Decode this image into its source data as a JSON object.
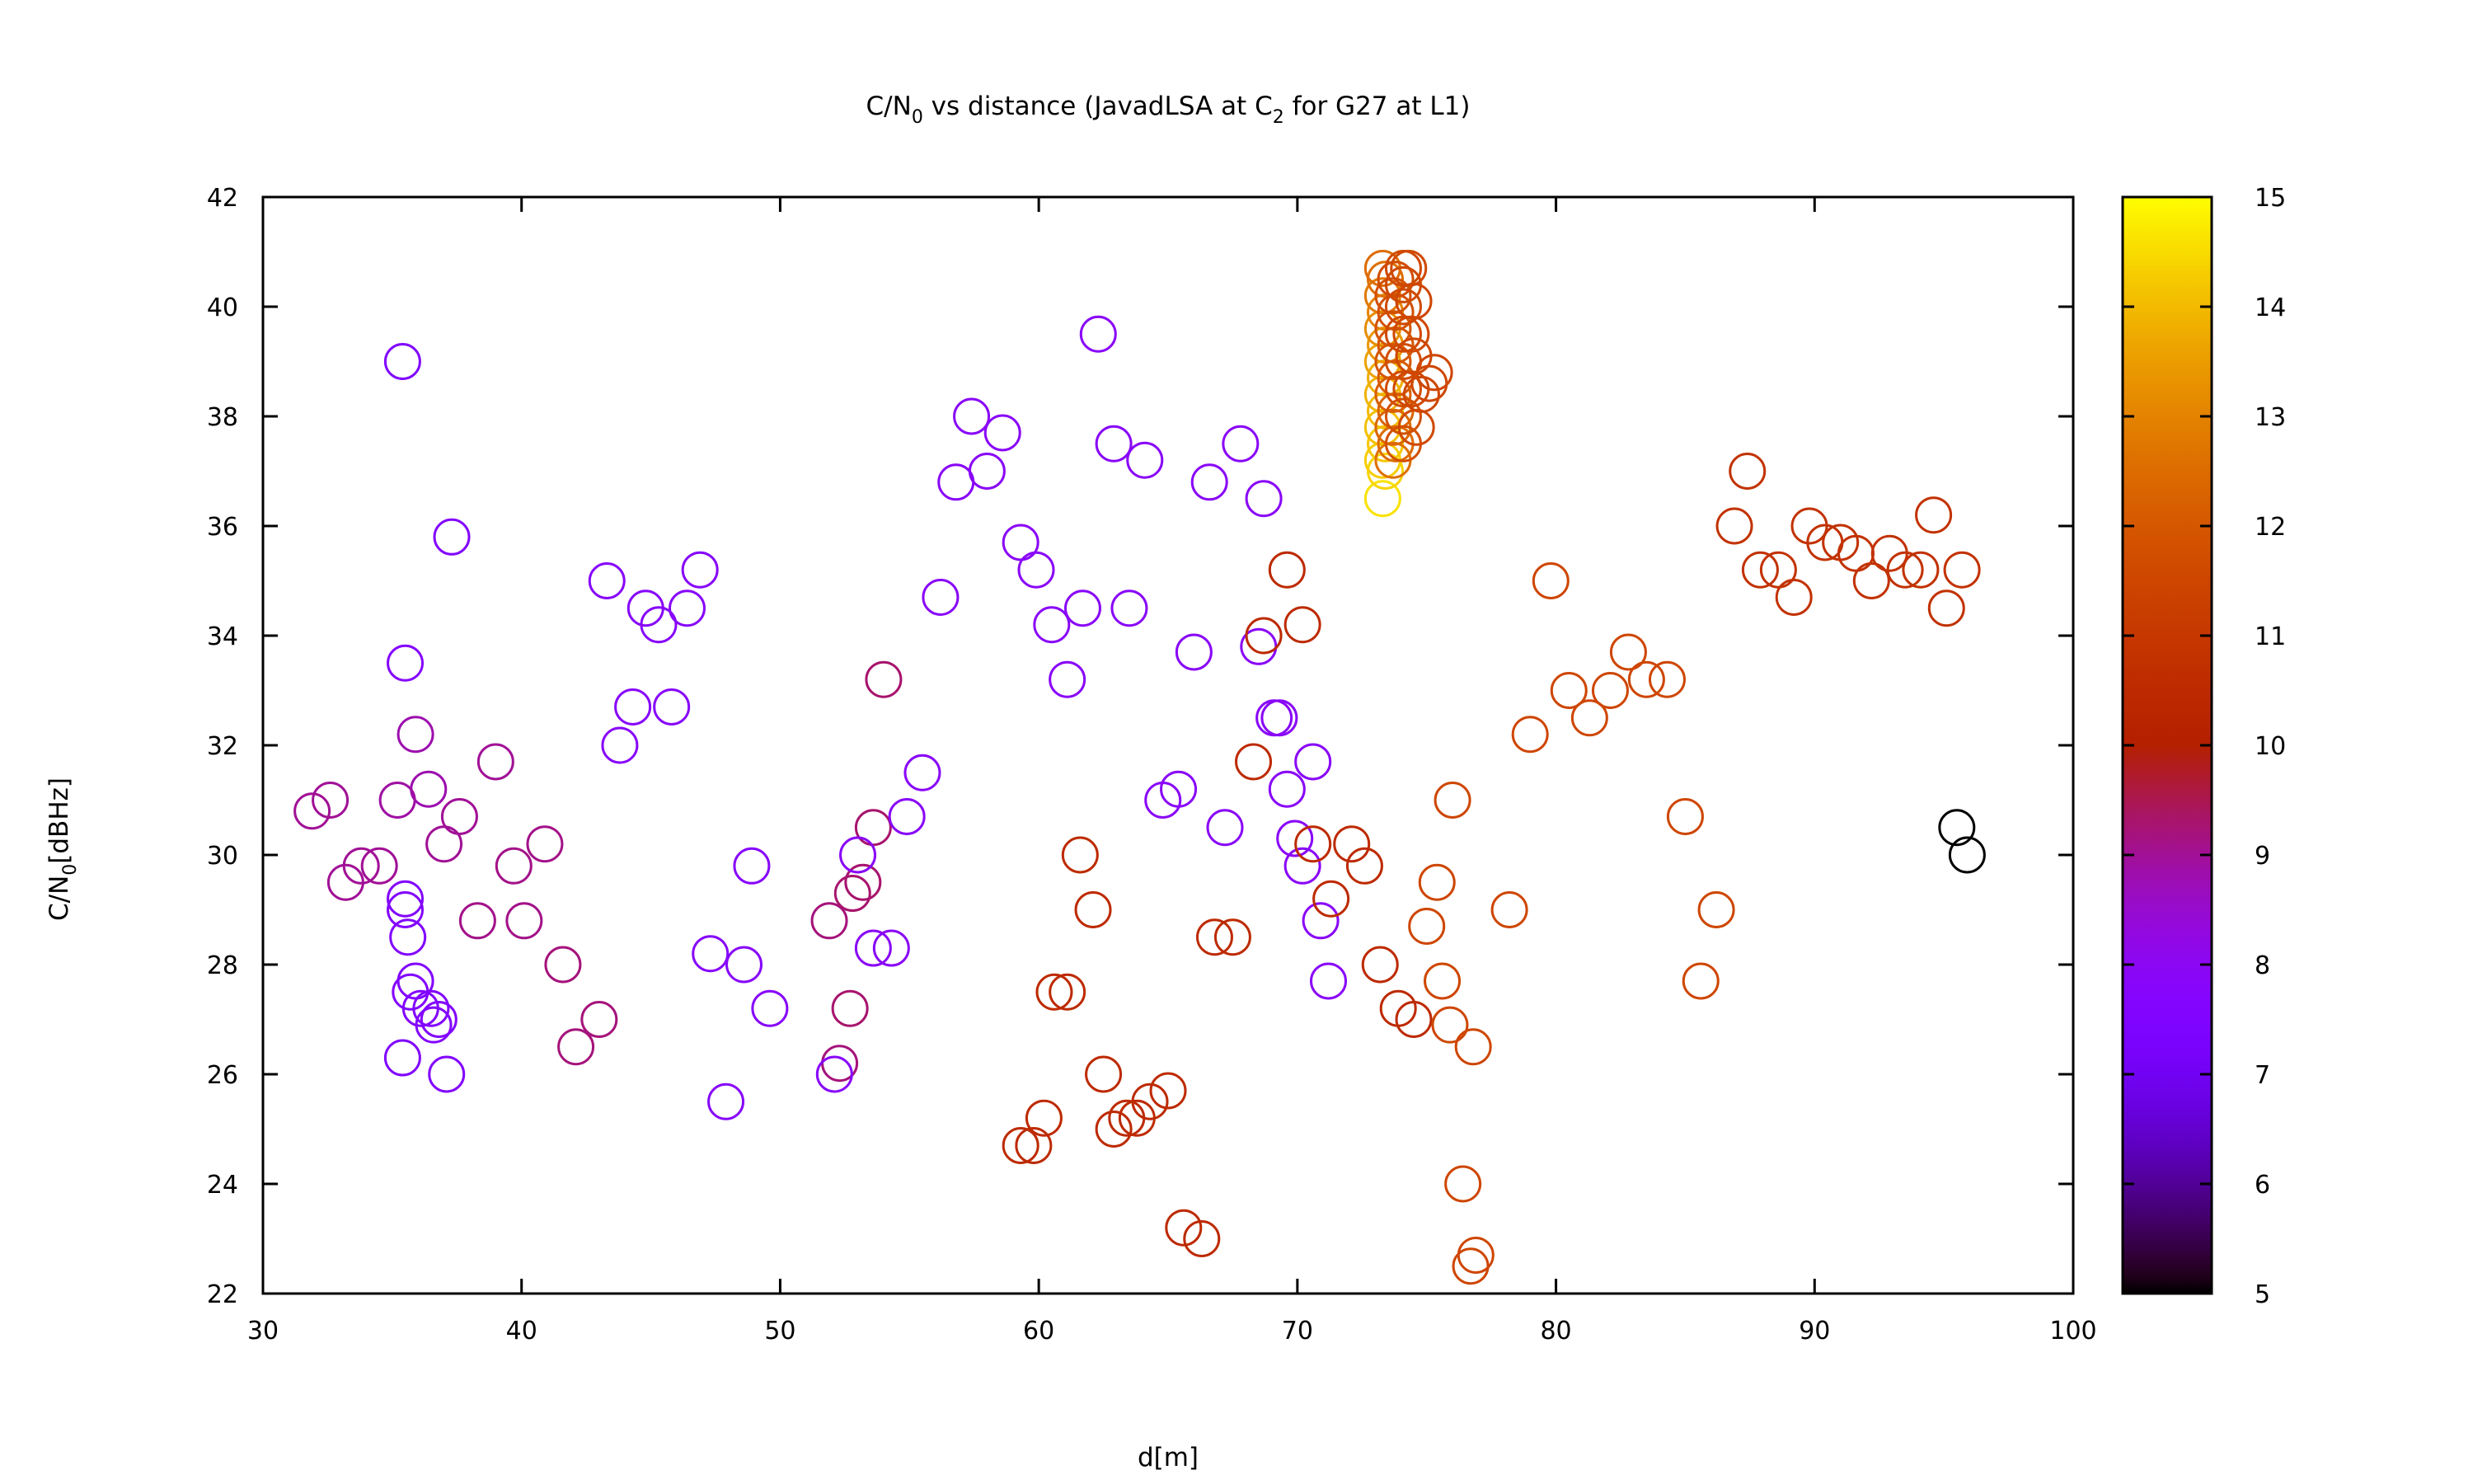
{
  "chart_data": {
    "type": "scatter",
    "title": {
      "pre": "C/N",
      "sub1": "0",
      "mid": " vs distance (JavadLSA at C",
      "sub2": "2",
      "post": " for G27 at L1)"
    },
    "xlabel": "d[m]",
    "ylabel": {
      "pre": "C/N",
      "sub": "0",
      "post": "[dBHz]"
    },
    "xlim": [
      30,
      100
    ],
    "ylim": [
      22,
      42
    ],
    "xticks": [
      "30",
      "40",
      "50",
      "60",
      "70",
      "80",
      "90",
      "100"
    ],
    "yticks": [
      "22",
      "24",
      "26",
      "28",
      "30",
      "32",
      "34",
      "36",
      "38",
      "40",
      "42"
    ],
    "grid": false,
    "colorbar": {
      "range": [
        5,
        15
      ],
      "ticks": [
        "5",
        "6",
        "7",
        "8",
        "9",
        "10",
        "11",
        "12",
        "13",
        "14",
        "15"
      ],
      "palette": "black-blue-purple-red-orange-yellow"
    },
    "marker": "open-circle",
    "points": [
      [
        35.4,
        39.0,
        7.5
      ],
      [
        37.3,
        35.8,
        7.6
      ],
      [
        35.5,
        33.5,
        7.7
      ],
      [
        35.9,
        32.2,
        8.8
      ],
      [
        36.4,
        31.2,
        8.8
      ],
      [
        35.2,
        31.0,
        8.9
      ],
      [
        37.6,
        30.7,
        9.0
      ],
      [
        37.0,
        30.2,
        9.0
      ],
      [
        32.6,
        31.0,
        9.0
      ],
      [
        31.9,
        30.8,
        9.0
      ],
      [
        33.8,
        29.8,
        9.0
      ],
      [
        33.2,
        29.5,
        9.0
      ],
      [
        34.5,
        29.8,
        9.0
      ],
      [
        35.5,
        29.2,
        7.6
      ],
      [
        35.5,
        29.0,
        7.6
      ],
      [
        35.6,
        28.5,
        7.6
      ],
      [
        35.9,
        27.7,
        7.6
      ],
      [
        35.7,
        27.5,
        7.6
      ],
      [
        36.1,
        27.2,
        7.6
      ],
      [
        36.5,
        27.2,
        7.6
      ],
      [
        36.8,
        27.0,
        7.6
      ],
      [
        36.6,
        26.9,
        7.6
      ],
      [
        35.4,
        26.3,
        7.5
      ],
      [
        37.1,
        26.0,
        7.6
      ],
      [
        39.0,
        31.7,
        9.0
      ],
      [
        39.7,
        29.8,
        9.1
      ],
      [
        38.3,
        28.8,
        9.1
      ],
      [
        40.9,
        30.2,
        9.1
      ],
      [
        40.1,
        28.8,
        9.1
      ],
      [
        41.6,
        28.0,
        9.2
      ],
      [
        42.1,
        26.5,
        9.2
      ],
      [
        43.0,
        27.0,
        9.2
      ],
      [
        43.3,
        35.0,
        7.8
      ],
      [
        44.8,
        34.5,
        7.8
      ],
      [
        45.3,
        34.2,
        7.8
      ],
      [
        46.4,
        34.5,
        7.8
      ],
      [
        46.9,
        35.2,
        7.8
      ],
      [
        44.3,
        32.7,
        7.8
      ],
      [
        43.8,
        32.0,
        7.8
      ],
      [
        45.8,
        32.7,
        7.8
      ],
      [
        47.3,
        28.2,
        7.8
      ],
      [
        48.6,
        28.0,
        7.8
      ],
      [
        49.6,
        27.2,
        7.8
      ],
      [
        48.9,
        29.8,
        7.8
      ],
      [
        47.9,
        25.5,
        7.8
      ],
      [
        51.9,
        28.8,
        9.2
      ],
      [
        52.3,
        26.2,
        9.2
      ],
      [
        52.1,
        26.0,
        7.8
      ],
      [
        52.7,
        27.2,
        9.3
      ],
      [
        52.8,
        29.3,
        9.3
      ],
      [
        53.2,
        29.5,
        9.3
      ],
      [
        53.6,
        30.5,
        9.3
      ],
      [
        53.0,
        30.0,
        7.9
      ],
      [
        53.6,
        28.3,
        7.9
      ],
      [
        54.3,
        28.3,
        7.9
      ],
      [
        54.0,
        33.2,
        9.3
      ],
      [
        54.9,
        30.7,
        7.9
      ],
      [
        55.5,
        31.5,
        7.9
      ],
      [
        56.2,
        34.7,
        7.9
      ],
      [
        56.8,
        36.8,
        7.9
      ],
      [
        57.4,
        38.0,
        7.9
      ],
      [
        58.0,
        37.0,
        7.9
      ],
      [
        58.6,
        37.7,
        7.9
      ],
      [
        59.3,
        35.7,
        7.9
      ],
      [
        59.9,
        35.2,
        7.9
      ],
      [
        60.5,
        34.2,
        7.9
      ],
      [
        61.1,
        33.2,
        7.9
      ],
      [
        61.7,
        34.5,
        7.9
      ],
      [
        62.3,
        39.5,
        7.9
      ],
      [
        62.9,
        37.5,
        7.9
      ],
      [
        63.5,
        34.5,
        7.9
      ],
      [
        64.1,
        37.2,
        7.9
      ],
      [
        64.8,
        31.0,
        7.9
      ],
      [
        65.4,
        31.2,
        7.9
      ],
      [
        66.0,
        33.7,
        7.9
      ],
      [
        66.6,
        36.8,
        7.9
      ],
      [
        67.2,
        30.5,
        7.9
      ],
      [
        67.8,
        37.5,
        7.9
      ],
      [
        68.5,
        33.8,
        7.9
      ],
      [
        68.7,
        36.5,
        7.9
      ],
      [
        69.1,
        32.5,
        7.9
      ],
      [
        69.3,
        32.5,
        7.9
      ],
      [
        69.6,
        31.2,
        7.9
      ],
      [
        69.9,
        30.3,
        7.9
      ],
      [
        70.2,
        29.8,
        7.9
      ],
      [
        70.6,
        31.7,
        7.9
      ],
      [
        70.9,
        28.8,
        7.9
      ],
      [
        71.2,
        27.7,
        7.9
      ],
      [
        59.3,
        24.7,
        10.5
      ],
      [
        59.8,
        24.7,
        10.5
      ],
      [
        60.2,
        25.2,
        10.5
      ],
      [
        60.6,
        27.5,
        10.5
      ],
      [
        61.1,
        27.5,
        10.5
      ],
      [
        61.6,
        30.0,
        10.5
      ],
      [
        62.1,
        29.0,
        10.5
      ],
      [
        62.5,
        26.0,
        10.5
      ],
      [
        62.9,
        25.0,
        10.5
      ],
      [
        63.4,
        25.2,
        10.5
      ],
      [
        63.8,
        25.2,
        10.5
      ],
      [
        64.3,
        25.5,
        10.5
      ],
      [
        65.0,
        25.7,
        10.5
      ],
      [
        65.6,
        23.2,
        10.5
      ],
      [
        66.3,
        23.0,
        10.5
      ],
      [
        66.8,
        28.5,
        10.5
      ],
      [
        67.5,
        28.5,
        10.5
      ],
      [
        68.3,
        31.7,
        10.5
      ],
      [
        68.7,
        34.0,
        10.5
      ],
      [
        69.6,
        35.2,
        10.5
      ],
      [
        70.2,
        34.2,
        10.5
      ],
      [
        70.6,
        30.2,
        10.5
      ],
      [
        71.3,
        29.2,
        10.5
      ],
      [
        72.1,
        30.2,
        10.5
      ],
      [
        72.6,
        29.8,
        10.5
      ],
      [
        73.2,
        28.0,
        10.5
      ],
      [
        73.9,
        27.2,
        10.5
      ],
      [
        74.5,
        27.0,
        10.5
      ],
      [
        75.0,
        28.7,
        11.5
      ],
      [
        75.4,
        29.5,
        11.5
      ],
      [
        75.6,
        27.7,
        11.5
      ],
      [
        75.9,
        26.9,
        11.5
      ],
      [
        76.0,
        31.0,
        11.5
      ],
      [
        76.4,
        24.0,
        11.5
      ],
      [
        76.7,
        22.5,
        11.5
      ],
      [
        76.9,
        22.7,
        11.5
      ],
      [
        76.8,
        26.5,
        11.5
      ],
      [
        78.2,
        29.0,
        11.5
      ],
      [
        79.0,
        32.2,
        11.5
      ],
      [
        79.8,
        35.0,
        11.5
      ],
      [
        80.5,
        33.0,
        11.5
      ],
      [
        81.3,
        32.5,
        11.5
      ],
      [
        82.1,
        33.0,
        11.5
      ],
      [
        82.8,
        33.7,
        11.5
      ],
      [
        83.5,
        33.2,
        11.5
      ],
      [
        84.3,
        33.2,
        11.5
      ],
      [
        85.0,
        30.7,
        11.5
      ],
      [
        85.6,
        27.7,
        11.5
      ],
      [
        86.2,
        29.0,
        11.5
      ],
      [
        86.9,
        36.0,
        10.8
      ],
      [
        87.4,
        37.0,
        10.8
      ],
      [
        87.9,
        35.2,
        10.8
      ],
      [
        88.6,
        35.2,
        10.8
      ],
      [
        89.2,
        34.7,
        10.8
      ],
      [
        89.8,
        36.0,
        10.8
      ],
      [
        90.4,
        35.7,
        10.8
      ],
      [
        91.0,
        35.7,
        10.8
      ],
      [
        91.6,
        35.5,
        10.8
      ],
      [
        92.2,
        35.0,
        10.8
      ],
      [
        92.9,
        35.5,
        10.8
      ],
      [
        93.5,
        35.2,
        10.8
      ],
      [
        94.1,
        35.2,
        10.8
      ],
      [
        94.6,
        36.2,
        10.8
      ],
      [
        95.1,
        34.5,
        10.8
      ],
      [
        95.7,
        35.2,
        10.8
      ],
      [
        95.5,
        30.5,
        5.0
      ],
      [
        95.9,
        30.0,
        5.0
      ],
      [
        73.3,
        36.5,
        14.6
      ],
      [
        73.4,
        37.0,
        14.4
      ],
      [
        73.3,
        37.2,
        14.3
      ],
      [
        73.4,
        37.5,
        14.2
      ],
      [
        73.3,
        37.8,
        14.1
      ],
      [
        73.4,
        38.1,
        14.0
      ],
      [
        73.3,
        38.4,
        13.9
      ],
      [
        73.4,
        38.7,
        13.8
      ],
      [
        73.3,
        39.0,
        13.6
      ],
      [
        73.4,
        39.3,
        13.4
      ],
      [
        73.3,
        39.6,
        13.2
      ],
      [
        73.4,
        39.9,
        13.0
      ],
      [
        73.3,
        40.2,
        12.8
      ],
      [
        73.4,
        40.5,
        12.6
      ],
      [
        73.3,
        40.7,
        12.5
      ],
      [
        73.7,
        37.2,
        12.6
      ],
      [
        73.8,
        37.5,
        12.5
      ],
      [
        73.7,
        37.8,
        12.4
      ],
      [
        73.8,
        38.1,
        12.3
      ],
      [
        73.7,
        38.4,
        12.2
      ],
      [
        73.8,
        38.7,
        12.1
      ],
      [
        73.7,
        39.0,
        12.0
      ],
      [
        73.8,
        39.3,
        12.0
      ],
      [
        73.7,
        39.6,
        11.9
      ],
      [
        73.8,
        39.9,
        11.8
      ],
      [
        73.7,
        40.2,
        11.8
      ],
      [
        73.8,
        40.5,
        11.7
      ],
      [
        74.1,
        37.5,
        11.8
      ],
      [
        74.1,
        38.0,
        11.8
      ],
      [
        74.1,
        38.5,
        11.7
      ],
      [
        74.1,
        39.0,
        11.7
      ],
      [
        74.1,
        39.5,
        11.6
      ],
      [
        74.1,
        40.0,
        11.6
      ],
      [
        74.1,
        40.4,
        11.6
      ],
      [
        74.1,
        40.7,
        11.6
      ],
      [
        74.3,
        40.7,
        11.6
      ],
      [
        74.4,
        39.5,
        11.6
      ],
      [
        74.4,
        38.5,
        11.6
      ],
      [
        74.6,
        37.8,
        11.6
      ],
      [
        74.8,
        38.4,
        11.5
      ],
      [
        75.1,
        38.6,
        11.5
      ],
      [
        75.3,
        38.8,
        11.5
      ],
      [
        74.5,
        39.1,
        11.5
      ],
      [
        74.5,
        40.1,
        11.5
      ]
    ]
  }
}
